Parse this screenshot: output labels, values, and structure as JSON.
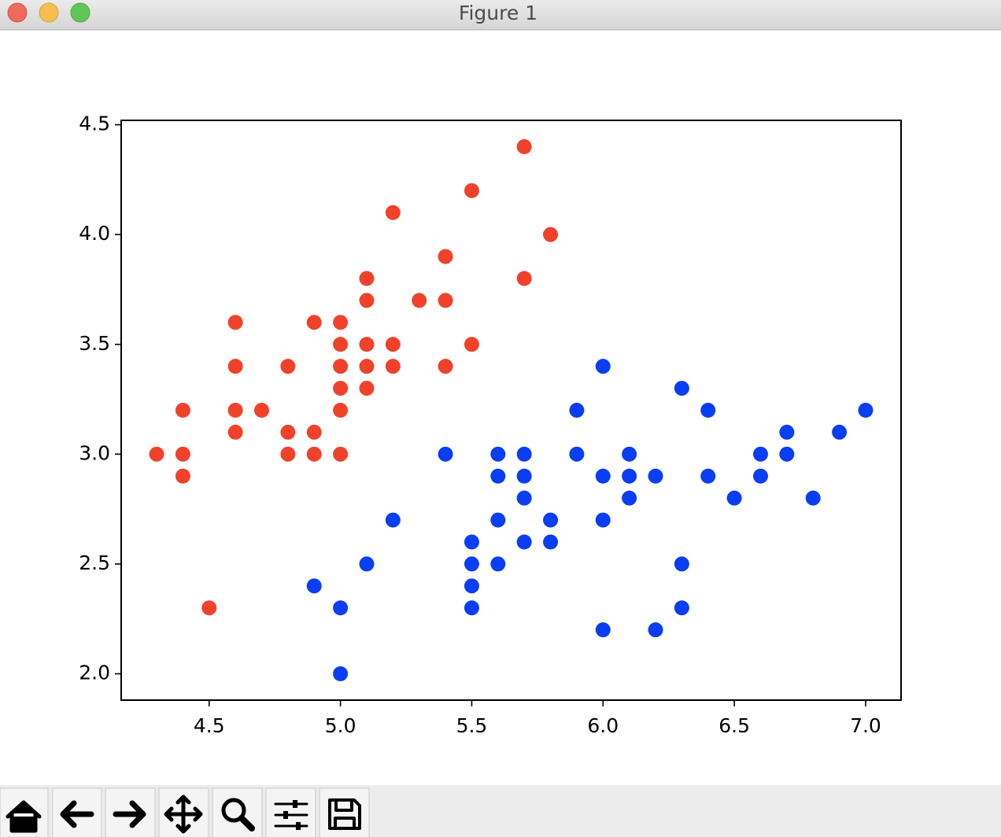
{
  "window_title": "Figure 1",
  "chart_data": {
    "type": "scatter",
    "xlim": [
      4.165,
      7.135
    ],
    "ylim": [
      1.88,
      4.52
    ],
    "xticks": [
      4.5,
      {
        "value": 5,
        "label": "5.0"
      },
      5.5,
      {
        "value": 6,
        "label": "6.0"
      },
      6.5,
      {
        "value": 7,
        "label": "7.0"
      }
    ],
    "yticks": [
      {
        "value": 2,
        "label": "2.0"
      },
      2.5,
      {
        "value": 3,
        "label": "3.0"
      },
      3.5,
      {
        "value": 4,
        "label": "4.0"
      },
      4.5
    ],
    "grid": false,
    "series": [
      {
        "color": "#f0422a",
        "x": [
          4.3,
          4.4,
          4.4,
          4.4,
          4.5,
          4.6,
          4.6,
          4.6,
          4.6,
          4.7,
          4.8,
          4.8,
          4.8,
          4.9,
          4.9,
          4.9,
          5.0,
          5.0,
          5.0,
          5.0,
          5.0,
          5.0,
          5.1,
          5.1,
          5.1,
          5.1,
          5.1,
          5.2,
          5.2,
          5.2,
          5.3,
          5.4,
          5.4,
          5.4,
          5.5,
          5.5,
          5.7,
          5.7,
          5.8
        ],
        "values": [
          3.0,
          3.2,
          3.0,
          2.9,
          2.3,
          3.6,
          3.4,
          3.2,
          3.1,
          3.2,
          3.4,
          3.1,
          3.0,
          3.6,
          3.1,
          3.0,
          3.6,
          3.5,
          3.4,
          3.3,
          3.2,
          3.0,
          3.8,
          3.7,
          3.5,
          3.4,
          3.3,
          4.1,
          3.5,
          3.4,
          3.7,
          3.9,
          3.7,
          3.4,
          4.2,
          3.5,
          4.4,
          3.8,
          4.0
        ]
      },
      {
        "color": "#0a3ef5",
        "x": [
          4.9,
          5.0,
          5.0,
          5.1,
          5.2,
          5.4,
          5.5,
          5.5,
          5.5,
          5.5,
          5.6,
          5.6,
          5.6,
          5.6,
          5.7,
          5.7,
          5.7,
          5.7,
          5.8,
          5.8,
          5.9,
          5.9,
          6.0,
          6.0,
          6.0,
          6.0,
          6.1,
          6.1,
          6.1,
          6.2,
          6.2,
          6.3,
          6.3,
          6.3,
          6.4,
          6.4,
          6.5,
          6.6,
          6.6,
          6.7,
          6.7,
          6.8,
          6.9,
          7.0
        ],
        "values": [
          2.4,
          2.3,
          2.0,
          2.5,
          2.7,
          3.0,
          2.6,
          2.5,
          2.4,
          2.3,
          3.0,
          2.9,
          2.7,
          2.5,
          3.0,
          2.9,
          2.8,
          2.6,
          2.7,
          2.6,
          3.2,
          3.0,
          3.4,
          2.9,
          2.7,
          2.2,
          3.0,
          2.9,
          2.8,
          2.9,
          2.2,
          3.3,
          2.5,
          2.3,
          3.2,
          2.9,
          2.8,
          3.0,
          2.9,
          3.1,
          3.0,
          2.8,
          3.1,
          3.2
        ]
      }
    ]
  }
}
